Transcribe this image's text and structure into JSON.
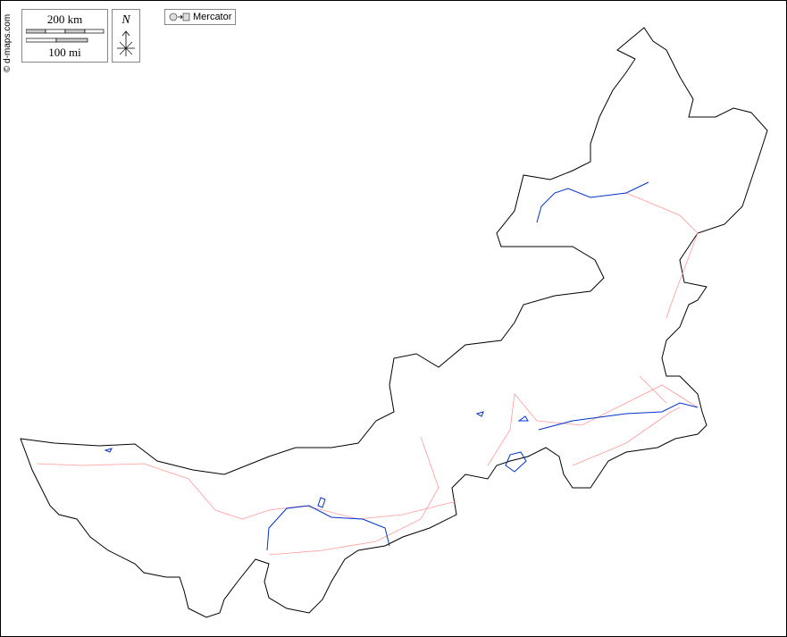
{
  "credit": "© d-maps.com",
  "scale": {
    "km_label": "200 km",
    "mi_label": "100 mi"
  },
  "north": {
    "label": "N"
  },
  "projection": {
    "label": "Mercator",
    "icon": "globe-to-square-icon"
  },
  "colors": {
    "border": "#000000",
    "rivers": "#0033cc",
    "roads": "#ff9999"
  }
}
